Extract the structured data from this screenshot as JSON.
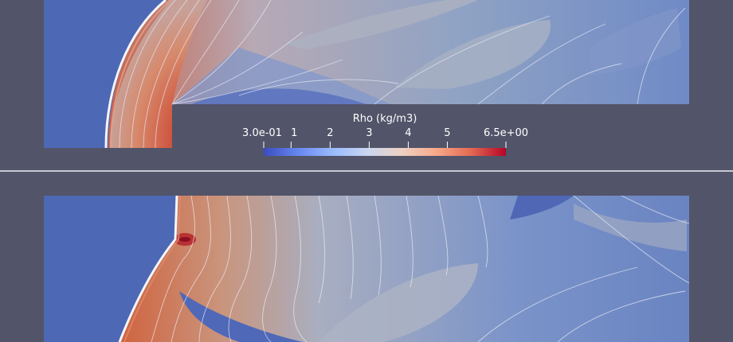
{
  "colorbar": {
    "title": "Rho (kg/m3)",
    "range": [
      0.3,
      6.5
    ],
    "ticks": [
      {
        "value": 0.3,
        "label": "3.0e-01"
      },
      {
        "value": 1,
        "label": "1"
      },
      {
        "value": 2,
        "label": "2"
      },
      {
        "value": 3,
        "label": "3"
      },
      {
        "value": 4,
        "label": "4"
      },
      {
        "value": 5,
        "label": "5"
      },
      {
        "value": 6.5,
        "label": "6.5e+00"
      }
    ],
    "colormap": [
      "#3b4cc0",
      "#6788ee",
      "#9abbff",
      "#c9d7f0",
      "#edd1c2",
      "#f7a889",
      "#e26952",
      "#b40426"
    ]
  },
  "colors": {
    "background": "#525469",
    "freestream": "#4d68b4",
    "shock": "#f4f6fb",
    "stagnation": "#c4332a"
  },
  "views": [
    {
      "name": "top-view",
      "content": "contour plot of density around forward-facing step"
    },
    {
      "name": "bottom-view",
      "content": "contour plot of density, later flow state"
    }
  ]
}
